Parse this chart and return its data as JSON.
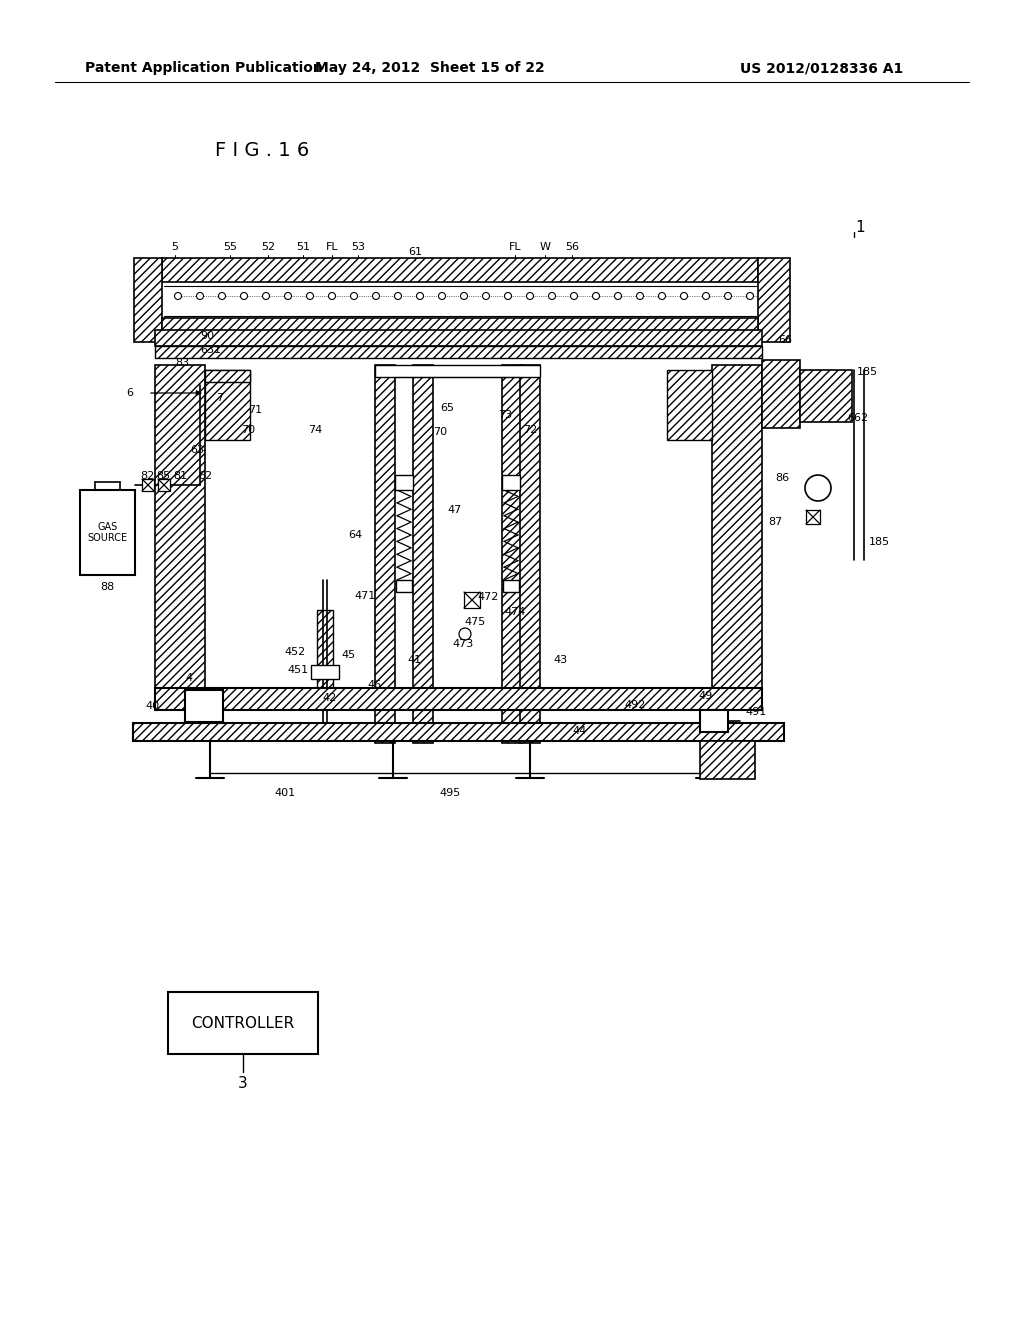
{
  "header_left": "Patent Application Publication",
  "header_mid": "May 24, 2012  Sheet 15 of 22",
  "header_right": "US 2012/0128336 A1",
  "fig_label": "F I G . 1 6",
  "controller_text": "CONTROLLER",
  "gas_source_text": "GAS\nSOURCE",
  "bg_color": "#ffffff"
}
